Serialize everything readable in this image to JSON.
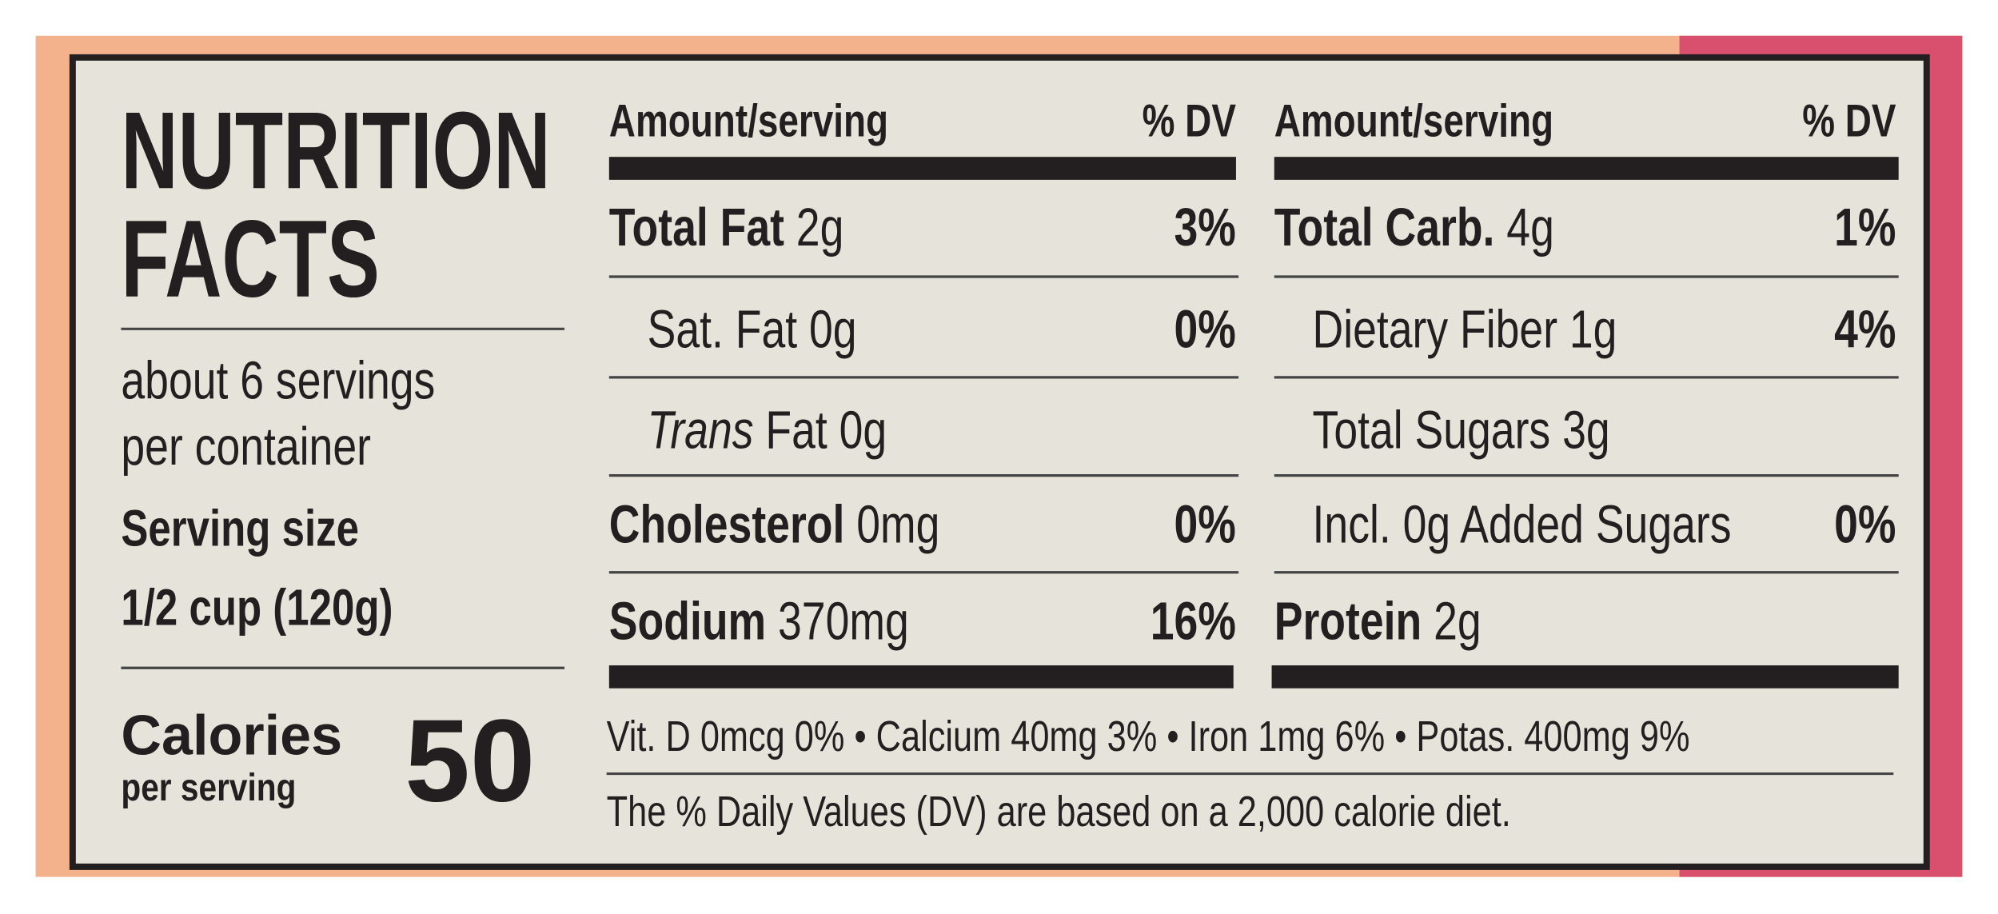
{
  "title_line1": "NUTRITION",
  "title_line2": "FACTS",
  "servings_line1": "about 6 servings",
  "servings_line2": "per container",
  "serving_size_label": "Serving size",
  "serving_size": "1/2 cup (120g)",
  "calories_label": "Calories",
  "calories_sub": "per serving",
  "calories": "50",
  "columns": [
    {
      "header_amount": "Amount/serving",
      "header_dv": "% DV",
      "rows": [
        {
          "name": "Total Fat",
          "amount": "2g",
          "dv": "3%",
          "bold": true
        },
        {
          "name": "Sat. Fat",
          "amount": "0g",
          "dv": "0%",
          "indent": true
        },
        {
          "italic": "Trans",
          "name": "Fat",
          "amount": "0g",
          "indent": true
        },
        {
          "name": "Cholesterol",
          "amount": "0mg",
          "dv": "0%",
          "bold": true
        },
        {
          "name": "Sodium",
          "amount": "370mg",
          "dv": "16%",
          "bold": true
        }
      ]
    },
    {
      "header_amount": "Amount/serving",
      "header_dv": "% DV",
      "rows": [
        {
          "name": "Total Carb.",
          "amount": "4g",
          "dv": "1%",
          "bold": true
        },
        {
          "name": "Dietary Fiber",
          "amount": "1g",
          "dv": "4%",
          "indent": true
        },
        {
          "name": "Total Sugars",
          "amount": "3g",
          "indent": true
        },
        {
          "name": "Incl. 0g  Added Sugars",
          "dv": "0%",
          "indent": true
        },
        {
          "name": "Protein",
          "amount": "2g",
          "bold": true
        }
      ]
    }
  ],
  "vitamins": "Vit. D 0mcg 0% • Calcium 40mg 3% • Iron  1mg 6% • Potas. 400mg 9%",
  "footnote": "The % Daily Values (DV) are based on a 2,000 calorie diet."
}
